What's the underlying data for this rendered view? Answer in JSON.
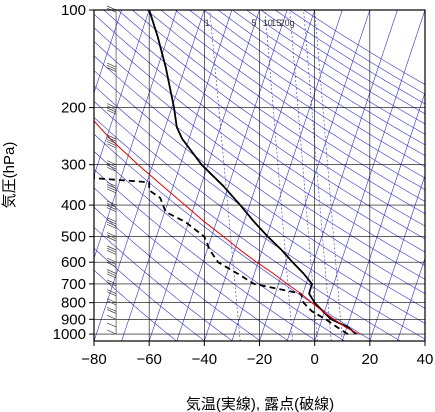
{
  "chart_data": {
    "type": "line",
    "title": "",
    "xlabel": "気温(実線), 露点(破線)",
    "ylabel": "気圧(hPa)",
    "xlim": [
      -80,
      40
    ],
    "ylim": [
      1050,
      100
    ],
    "y_scale": "log",
    "x_ticks": [
      -80,
      -60,
      -40,
      -20,
      0,
      20,
      40
    ],
    "y_ticks": [
      100,
      200,
      300,
      400,
      500,
      600,
      700,
      800,
      900,
      1000
    ],
    "x_tick_labels": [
      "−80",
      "−60",
      "−40",
      "−20",
      "0",
      "20",
      "40"
    ],
    "y_tick_labels": [
      "100",
      "200",
      "300",
      "400",
      "500",
      "600",
      "700",
      "800",
      "900",
      "1000"
    ],
    "mixing_ratio_labels": [
      "1",
      "5",
      "10",
      "15",
      "20g"
    ],
    "grid": true,
    "colors": {
      "temperature": "#000000",
      "dewpoint": "#000000",
      "parcel": "#e00000",
      "adiabats": "#3333cc",
      "grid": "#000000",
      "wind_barbs": "#444444"
    },
    "series": [
      {
        "style": "solid",
        "color": "#000000",
        "p": [
          1000,
          950,
          925,
          900,
          850,
          800,
          750,
          700,
          650,
          600,
          550,
          500,
          450,
          400,
          350,
          300,
          250,
          230,
          200,
          150,
          120,
          100
        ],
        "t": [
          15,
          12,
          9,
          6,
          3,
          0,
          -2,
          -1,
          -4,
          -8,
          -12,
          -17,
          -22,
          -27,
          -33,
          -41,
          -48,
          -50,
          -51,
          -54,
          -57,
          -60
        ]
      },
      {
        "style": "dashed",
        "color": "#000000",
        "p": [
          1000,
          950,
          900,
          850,
          800,
          750,
          720,
          700,
          650,
          600,
          550,
          500,
          450,
          420,
          400,
          380,
          360,
          340,
          330,
          320
        ],
        "t": [
          12,
          8,
          4,
          -1,
          -4,
          -5,
          -15,
          -22,
          -28,
          -35,
          -38,
          -40,
          -47,
          -54,
          -55,
          -56,
          -60,
          -60,
          -80,
          -80
        ]
      },
      {
        "style": "solid",
        "color": "#e00000",
        "p": [
          1000,
          950,
          900,
          850,
          800,
          750,
          700,
          650,
          600,
          550,
          500,
          450,
          400,
          350,
          300,
          250,
          220
        ],
        "t": [
          16,
          11,
          7,
          3,
          -1,
          -5,
          -10,
          -15,
          -21,
          -27,
          -33,
          -40,
          -47,
          -55,
          -64,
          -74,
          -80
        ]
      }
    ],
    "wind_barbs": {
      "p": [
        1000,
        950,
        900,
        850,
        800,
        750,
        700,
        650,
        600,
        550,
        500,
        450,
        400,
        350,
        300,
        250,
        200,
        150,
        100
      ],
      "speed_kt": [
        5,
        10,
        10,
        15,
        15,
        20,
        20,
        25,
        25,
        30,
        30,
        35,
        35,
        40,
        40,
        45,
        40,
        30,
        20
      ]
    }
  }
}
